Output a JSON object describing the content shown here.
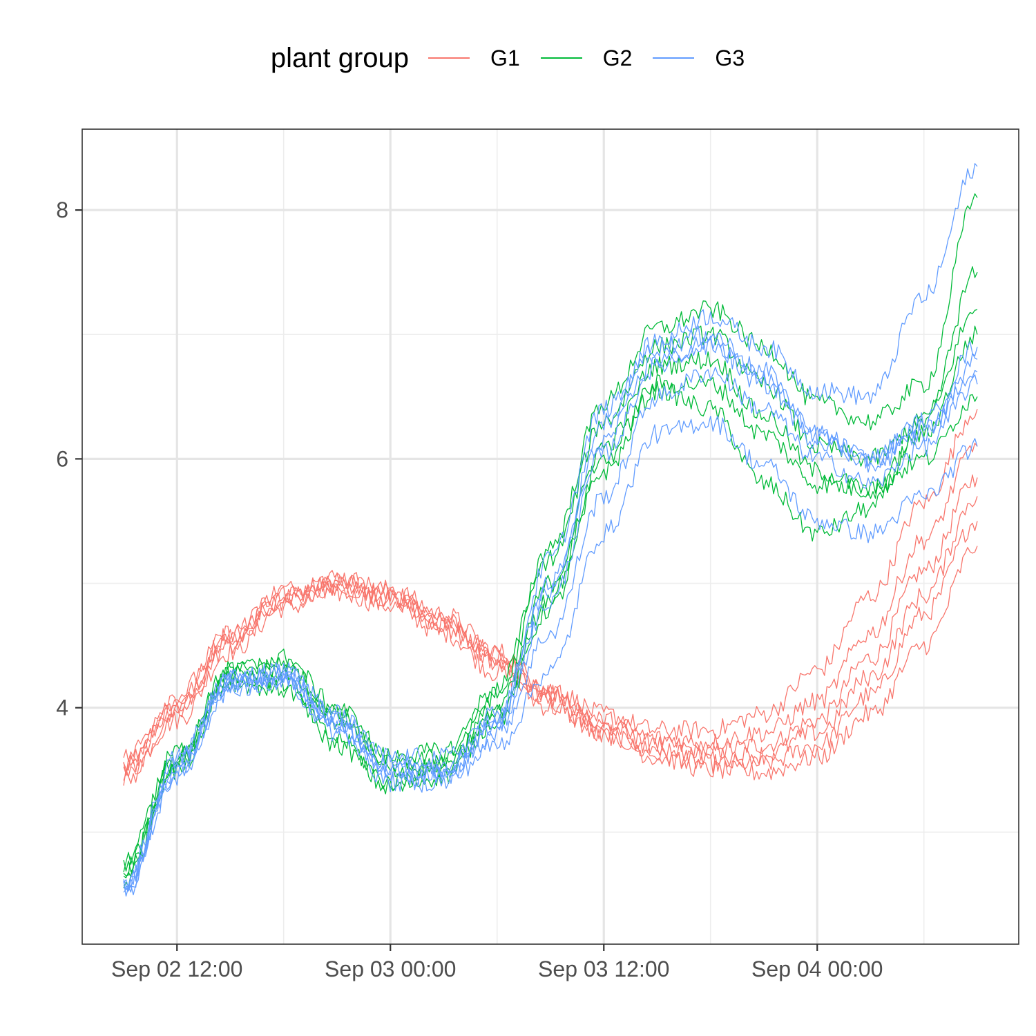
{
  "chart_data": {
    "type": "line",
    "title": "",
    "xlabel": "",
    "ylabel": "",
    "legend": {
      "title": "plant group",
      "position": "top",
      "entries": [
        {
          "name": "G1",
          "color": "#F8766D"
        },
        {
          "name": "G2",
          "color": "#00BA38"
        },
        {
          "name": "G3",
          "color": "#619CFF"
        }
      ]
    },
    "x_axis": {
      "type": "datetime",
      "range": [
        "2024-09-02 09:00",
        "2024-09-04 10:00"
      ],
      "ticks": [
        {
          "value": "2024-09-02 12:00",
          "label": "Sep 02 12:00"
        },
        {
          "value": "2024-09-03 00:00",
          "label": "Sep 03 00:00"
        },
        {
          "value": "2024-09-03 12:00",
          "label": "Sep 03 12:00"
        },
        {
          "value": "2024-09-04 00:00",
          "label": "Sep 04 00:00"
        }
      ]
    },
    "y_axis": {
      "range": [
        2.1,
        8.65
      ],
      "ticks": [
        {
          "value": 4,
          "label": "4"
        },
        {
          "value": 6,
          "label": "6"
        },
        {
          "value": 8,
          "label": "8"
        }
      ],
      "minor_ticks": [
        3,
        5,
        7
      ]
    },
    "grid": true,
    "x_sample_times": [
      "2024-09-02 09:00",
      "2024-09-02 12:00",
      "2024-09-02 15:00",
      "2024-09-02 18:00",
      "2024-09-02 21:00",
      "2024-09-03 00:00",
      "2024-09-03 03:00",
      "2024-09-03 06:00",
      "2024-09-03 09:00",
      "2024-09-03 12:00",
      "2024-09-03 15:00",
      "2024-09-03 18:00",
      "2024-09-03 21:00",
      "2024-09-04 00:00",
      "2024-09-04 03:00",
      "2024-09-04 06:00",
      "2024-09-04 09:00"
    ],
    "series": [
      {
        "name": "G1",
        "color": "#F8766D",
        "lines": [
          [
            3.5,
            4.0,
            4.55,
            4.9,
            5.0,
            4.9,
            4.7,
            4.4,
            4.1,
            3.85,
            3.7,
            3.65,
            3.7,
            3.9,
            4.4,
            5.1,
            5.85
          ],
          [
            3.45,
            3.9,
            4.45,
            4.8,
            4.92,
            4.82,
            4.6,
            4.28,
            4.0,
            3.78,
            3.62,
            3.55,
            3.55,
            3.7,
            4.1,
            4.75,
            5.5
          ],
          [
            3.55,
            4.05,
            4.6,
            4.95,
            5.05,
            4.95,
            4.75,
            4.45,
            4.15,
            3.95,
            3.82,
            3.82,
            3.95,
            4.3,
            4.9,
            5.65,
            6.4
          ],
          [
            3.4,
            3.95,
            4.5,
            4.85,
            4.98,
            4.88,
            4.65,
            4.35,
            4.05,
            3.8,
            3.6,
            3.5,
            3.48,
            3.6,
            3.95,
            4.5,
            5.3
          ],
          [
            3.5,
            4.0,
            4.52,
            4.88,
            4.97,
            4.87,
            4.68,
            4.38,
            4.08,
            3.85,
            3.68,
            3.6,
            3.62,
            3.8,
            4.25,
            4.9,
            5.7
          ],
          [
            3.6,
            4.1,
            4.6,
            4.92,
            5.02,
            4.92,
            4.72,
            4.42,
            4.12,
            3.9,
            3.75,
            3.72,
            3.8,
            4.05,
            4.6,
            5.35,
            6.1
          ]
        ]
      },
      {
        "name": "G2",
        "color": "#00BA38",
        "lines": [
          [
            2.75,
            3.6,
            4.25,
            4.2,
            3.7,
            3.35,
            3.45,
            3.9,
            4.8,
            5.9,
            6.55,
            6.4,
            5.8,
            5.4,
            5.6,
            6.3,
            7.5
          ],
          [
            2.7,
            3.65,
            4.3,
            4.35,
            3.95,
            3.55,
            3.6,
            4.1,
            5.2,
            6.3,
            6.9,
            7.0,
            6.6,
            6.1,
            6.0,
            6.3,
            7.2
          ],
          [
            2.6,
            3.55,
            4.2,
            4.15,
            3.75,
            3.4,
            3.55,
            4.0,
            5.0,
            6.1,
            6.75,
            6.8,
            6.35,
            5.9,
            5.75,
            6.2,
            7.0
          ],
          [
            2.65,
            3.6,
            4.3,
            4.4,
            4.0,
            3.6,
            3.65,
            4.15,
            5.3,
            6.45,
            7.05,
            7.2,
            6.9,
            6.45,
            6.3,
            6.6,
            8.1
          ],
          [
            2.7,
            3.5,
            4.25,
            4.3,
            3.9,
            3.5,
            3.5,
            3.95,
            4.9,
            6.0,
            6.6,
            6.6,
            6.2,
            5.8,
            5.75,
            6.0,
            6.5
          ]
        ]
      },
      {
        "name": "G3",
        "color": "#619CFF",
        "lines": [
          [
            2.6,
            3.55,
            4.2,
            4.2,
            3.8,
            3.5,
            3.45,
            3.9,
            5.2,
            6.4,
            6.9,
            7.0,
            6.7,
            6.2,
            5.95,
            6.2,
            6.8
          ],
          [
            2.55,
            3.45,
            4.15,
            4.25,
            3.9,
            3.45,
            3.45,
            3.8,
            4.6,
            5.7,
            6.5,
            6.7,
            6.4,
            6.0,
            5.8,
            6.1,
            6.6
          ],
          [
            2.6,
            3.6,
            4.25,
            4.3,
            3.95,
            3.55,
            3.5,
            3.85,
            4.85,
            6.05,
            6.75,
            6.95,
            6.65,
            6.2,
            6.0,
            6.25,
            6.7
          ],
          [
            2.5,
            3.5,
            4.2,
            4.25,
            3.85,
            3.4,
            3.4,
            3.7,
            4.3,
            5.4,
            6.2,
            6.3,
            5.95,
            5.5,
            5.4,
            5.7,
            6.1
          ],
          [
            2.55,
            3.55,
            4.25,
            4.2,
            3.85,
            3.5,
            3.5,
            3.9,
            4.95,
            6.3,
            6.95,
            7.15,
            6.9,
            6.55,
            6.5,
            7.3,
            8.35
          ],
          [
            2.5,
            3.45,
            4.2,
            4.3,
            3.9,
            3.6,
            3.6,
            3.95,
            5.0,
            6.15,
            6.8,
            6.9,
            6.6,
            6.15,
            6.0,
            6.3,
            6.9
          ]
        ]
      }
    ]
  }
}
